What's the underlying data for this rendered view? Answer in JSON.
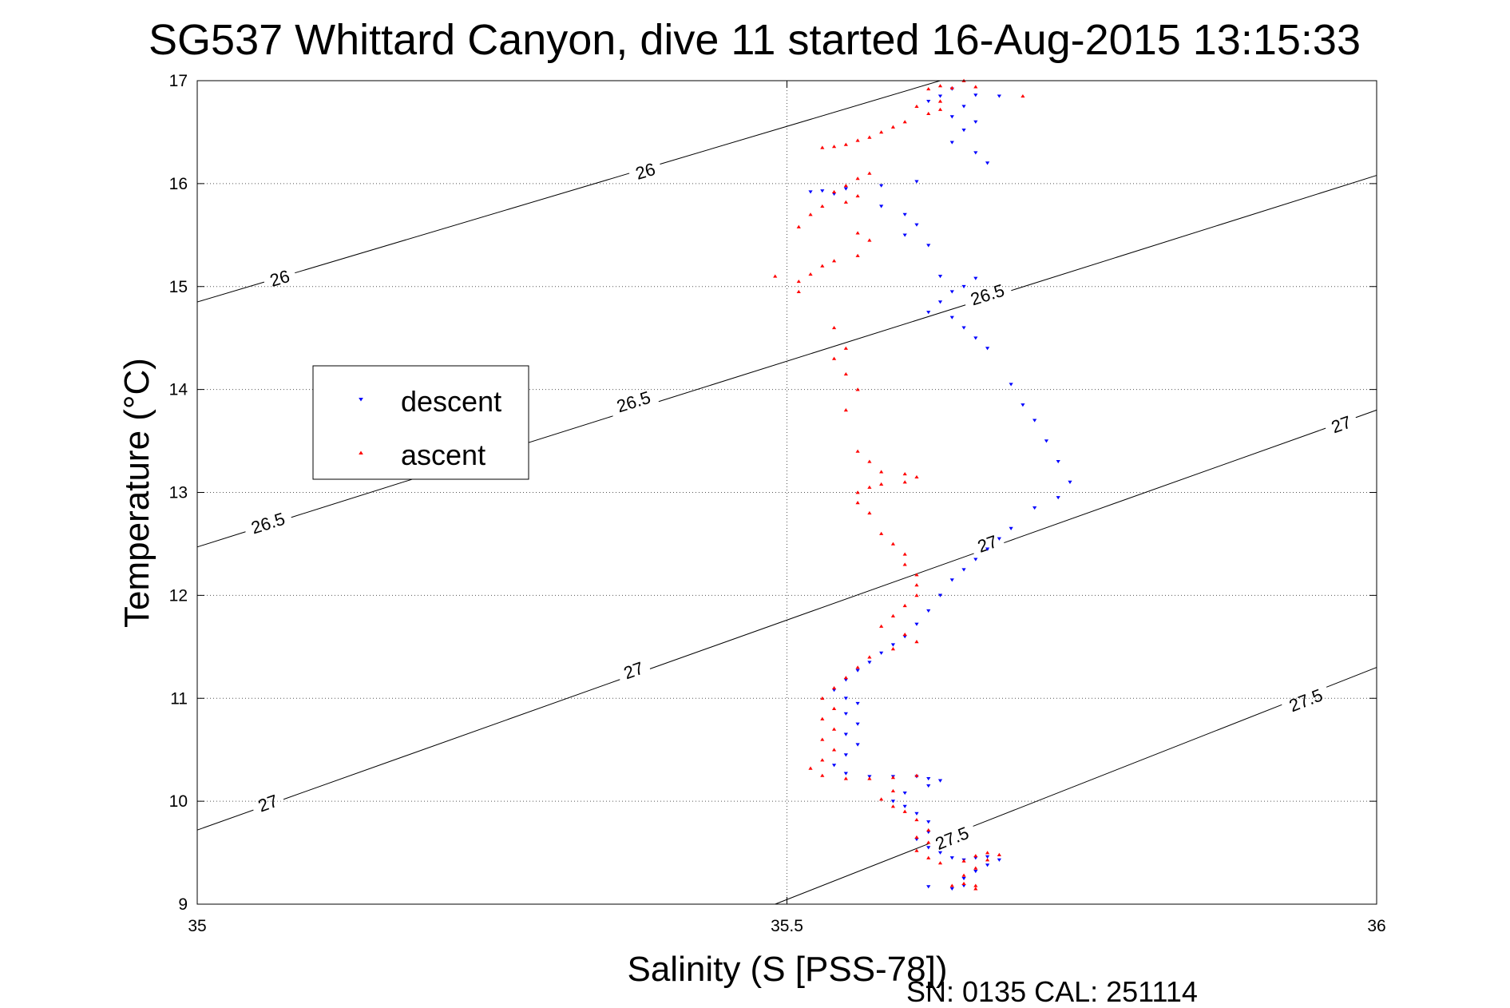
{
  "chart_data": {
    "type": "scatter",
    "title": "SG537 Whittard Canyon, dive 11 started 16-Aug-2015 13:15:33",
    "xlabel": "Salinity (S [PSS-78])",
    "ylabel": "Temperature (°C)",
    "xlim": [
      35,
      36
    ],
    "ylim": [
      9,
      17
    ],
    "x_ticks": [
      35,
      35.5,
      36
    ],
    "x_tick_labels": [
      "35",
      "35.5",
      "36"
    ],
    "y_ticks": [
      9,
      10,
      11,
      12,
      13,
      14,
      15,
      16,
      17
    ],
    "y_tick_labels": [
      "9",
      "10",
      "11",
      "12",
      "13",
      "14",
      "15",
      "16",
      "17"
    ],
    "grid": true,
    "legend_position": "left",
    "footer": "SN: 0135  CAL: 251114",
    "density_contours": [
      {
        "level": "26",
        "points": [
          [
            35,
            14.85
          ],
          [
            35.63,
            17.0
          ]
        ],
        "labels": [
          {
            "s": 35.07,
            "t": 15.08
          },
          {
            "s": 35.38,
            "t": 16.12
          }
        ]
      },
      {
        "level": "26.5",
        "points": [
          [
            35,
            12.47
          ],
          [
            36,
            16.08
          ]
        ],
        "labels": [
          {
            "s": 35.06,
            "t": 12.7
          },
          {
            "s": 35.37,
            "t": 13.88
          },
          {
            "s": 35.67,
            "t": 14.92
          }
        ]
      },
      {
        "level": "27",
        "points": [
          [
            35,
            9.72
          ],
          [
            36,
            13.8
          ]
        ],
        "labels": [
          {
            "s": 35.06,
            "t": 9.98
          },
          {
            "s": 35.37,
            "t": 11.27
          },
          {
            "s": 35.67,
            "t": 12.5
          },
          {
            "s": 35.97,
            "t": 13.66
          }
        ]
      },
      {
        "level": "27.5",
        "points": [
          [
            35.49,
            9.0
          ],
          [
            36,
            11.3
          ]
        ],
        "labels": [
          {
            "s": 35.64,
            "t": 9.64
          },
          {
            "s": 35.94,
            "t": 10.98
          }
        ]
      }
    ],
    "series": [
      {
        "name": "descent",
        "color": "#0000ff",
        "marker": "triangle-down",
        "points": [
          [
            35.64,
            16.92
          ],
          [
            35.66,
            16.86
          ],
          [
            35.68,
            16.85
          ],
          [
            35.63,
            16.85
          ],
          [
            35.62,
            16.8
          ],
          [
            35.65,
            16.75
          ],
          [
            35.64,
            16.65
          ],
          [
            35.66,
            16.6
          ],
          [
            35.65,
            16.52
          ],
          [
            35.64,
            16.4
          ],
          [
            35.66,
            16.3
          ],
          [
            35.67,
            16.2
          ],
          [
            35.61,
            16.02
          ],
          [
            35.58,
            15.98
          ],
          [
            35.55,
            15.95
          ],
          [
            35.53,
            15.93
          ],
          [
            35.52,
            15.92
          ],
          [
            35.54,
            15.9
          ],
          [
            35.58,
            15.78
          ],
          [
            35.6,
            15.7
          ],
          [
            35.61,
            15.6
          ],
          [
            35.6,
            15.5
          ],
          [
            35.62,
            15.4
          ],
          [
            35.63,
            15.1
          ],
          [
            35.66,
            15.08
          ],
          [
            35.65,
            15.0
          ],
          [
            35.64,
            14.95
          ],
          [
            35.63,
            14.85
          ],
          [
            35.62,
            14.75
          ],
          [
            35.64,
            14.7
          ],
          [
            35.65,
            14.6
          ],
          [
            35.66,
            14.5
          ],
          [
            35.67,
            14.4
          ],
          [
            35.69,
            14.05
          ],
          [
            35.7,
            13.85
          ],
          [
            35.71,
            13.7
          ],
          [
            35.72,
            13.5
          ],
          [
            35.73,
            13.3
          ],
          [
            35.74,
            13.1
          ],
          [
            35.73,
            12.95
          ],
          [
            35.71,
            12.85
          ],
          [
            35.69,
            12.65
          ],
          [
            35.68,
            12.55
          ],
          [
            35.67,
            12.45
          ],
          [
            35.66,
            12.35
          ],
          [
            35.65,
            12.25
          ],
          [
            35.64,
            12.15
          ],
          [
            35.63,
            12.0
          ],
          [
            35.62,
            11.85
          ],
          [
            35.61,
            11.72
          ],
          [
            35.6,
            11.6
          ],
          [
            35.59,
            11.52
          ],
          [
            35.58,
            11.44
          ],
          [
            35.57,
            11.35
          ],
          [
            35.56,
            11.27
          ],
          [
            35.55,
            11.18
          ],
          [
            35.54,
            11.08
          ],
          [
            35.55,
            11.0
          ],
          [
            35.56,
            10.95
          ],
          [
            35.55,
            10.85
          ],
          [
            35.56,
            10.75
          ],
          [
            35.55,
            10.65
          ],
          [
            35.56,
            10.55
          ],
          [
            35.55,
            10.45
          ],
          [
            35.54,
            10.35
          ],
          [
            35.55,
            10.27
          ],
          [
            35.57,
            10.24
          ],
          [
            35.59,
            10.24
          ],
          [
            35.61,
            10.24
          ],
          [
            35.62,
            10.22
          ],
          [
            35.63,
            10.2
          ],
          [
            35.62,
            10.15
          ],
          [
            35.6,
            10.08
          ],
          [
            35.59,
            10.0
          ],
          [
            35.6,
            9.95
          ],
          [
            35.61,
            9.88
          ],
          [
            35.62,
            9.8
          ],
          [
            35.62,
            9.7
          ],
          [
            35.61,
            9.63
          ],
          [
            35.62,
            9.55
          ],
          [
            35.63,
            9.5
          ],
          [
            35.64,
            9.45
          ],
          [
            35.65,
            9.43
          ],
          [
            35.66,
            9.45
          ],
          [
            35.67,
            9.46
          ],
          [
            35.68,
            9.43
          ],
          [
            35.67,
            9.38
          ],
          [
            35.66,
            9.32
          ],
          [
            35.65,
            9.25
          ],
          [
            35.65,
            9.18
          ],
          [
            35.64,
            9.15
          ],
          [
            35.62,
            9.17
          ]
        ]
      },
      {
        "name": "ascent",
        "color": "#ff0000",
        "marker": "triangle-up",
        "points": [
          [
            35.65,
            17.0
          ],
          [
            35.63,
            16.95
          ],
          [
            35.62,
            16.92
          ],
          [
            35.64,
            16.93
          ],
          [
            35.66,
            16.94
          ],
          [
            35.7,
            16.85
          ],
          [
            35.63,
            16.8
          ],
          [
            35.61,
            16.75
          ],
          [
            35.63,
            16.72
          ],
          [
            35.62,
            16.68
          ],
          [
            35.6,
            16.6
          ],
          [
            35.59,
            16.55
          ],
          [
            35.58,
            16.5
          ],
          [
            35.57,
            16.45
          ],
          [
            35.56,
            16.42
          ],
          [
            35.55,
            16.38
          ],
          [
            35.54,
            16.36
          ],
          [
            35.53,
            16.35
          ],
          [
            35.57,
            16.1
          ],
          [
            35.56,
            16.05
          ],
          [
            35.55,
            15.98
          ],
          [
            35.54,
            15.92
          ],
          [
            35.56,
            15.88
          ],
          [
            35.55,
            15.82
          ],
          [
            35.53,
            15.78
          ],
          [
            35.52,
            15.7
          ],
          [
            35.51,
            15.58
          ],
          [
            35.56,
            15.52
          ],
          [
            35.57,
            15.45
          ],
          [
            35.56,
            15.3
          ],
          [
            35.54,
            15.25
          ],
          [
            35.53,
            15.2
          ],
          [
            35.52,
            15.12
          ],
          [
            35.51,
            15.05
          ],
          [
            35.49,
            15.1
          ],
          [
            35.51,
            14.95
          ],
          [
            35.54,
            14.6
          ],
          [
            35.55,
            14.4
          ],
          [
            35.54,
            14.3
          ],
          [
            35.55,
            14.15
          ],
          [
            35.56,
            14.0
          ],
          [
            35.55,
            13.8
          ],
          [
            35.56,
            13.4
          ],
          [
            35.57,
            13.3
          ],
          [
            35.58,
            13.2
          ],
          [
            35.6,
            13.18
          ],
          [
            35.61,
            13.15
          ],
          [
            35.6,
            13.1
          ],
          [
            35.58,
            13.08
          ],
          [
            35.57,
            13.05
          ],
          [
            35.56,
            13.0
          ],
          [
            35.56,
            12.9
          ],
          [
            35.57,
            12.8
          ],
          [
            35.58,
            12.6
          ],
          [
            35.59,
            12.5
          ],
          [
            35.6,
            12.4
          ],
          [
            35.6,
            12.3
          ],
          [
            35.61,
            12.2
          ],
          [
            35.61,
            12.1
          ],
          [
            35.61,
            12.0
          ],
          [
            35.6,
            11.9
          ],
          [
            35.59,
            11.8
          ],
          [
            35.58,
            11.7
          ],
          [
            35.6,
            11.62
          ],
          [
            35.61,
            11.55
          ],
          [
            35.59,
            11.48
          ],
          [
            35.57,
            11.4
          ],
          [
            35.56,
            11.3
          ],
          [
            35.55,
            11.2
          ],
          [
            35.54,
            11.1
          ],
          [
            35.53,
            11.0
          ],
          [
            35.54,
            10.9
          ],
          [
            35.53,
            10.8
          ],
          [
            35.54,
            10.7
          ],
          [
            35.53,
            10.6
          ],
          [
            35.54,
            10.5
          ],
          [
            35.53,
            10.4
          ],
          [
            35.52,
            10.32
          ],
          [
            35.53,
            10.25
          ],
          [
            35.55,
            10.22
          ],
          [
            35.57,
            10.22
          ],
          [
            35.59,
            10.23
          ],
          [
            35.61,
            10.25
          ],
          [
            35.59,
            10.1
          ],
          [
            35.58,
            10.02
          ],
          [
            35.59,
            9.95
          ],
          [
            35.6,
            9.9
          ],
          [
            35.61,
            9.82
          ],
          [
            35.62,
            9.72
          ],
          [
            35.61,
            9.65
          ],
          [
            35.62,
            9.6
          ],
          [
            35.61,
            9.52
          ],
          [
            35.62,
            9.45
          ],
          [
            35.63,
            9.4
          ],
          [
            35.65,
            9.42
          ],
          [
            35.66,
            9.47
          ],
          [
            35.67,
            9.5
          ],
          [
            35.68,
            9.48
          ],
          [
            35.67,
            9.43
          ],
          [
            35.66,
            9.35
          ],
          [
            35.65,
            9.28
          ],
          [
            35.65,
            9.2
          ],
          [
            35.66,
            9.15
          ],
          [
            35.64,
            9.18
          ],
          [
            35.66,
            9.18
          ]
        ]
      }
    ]
  }
}
